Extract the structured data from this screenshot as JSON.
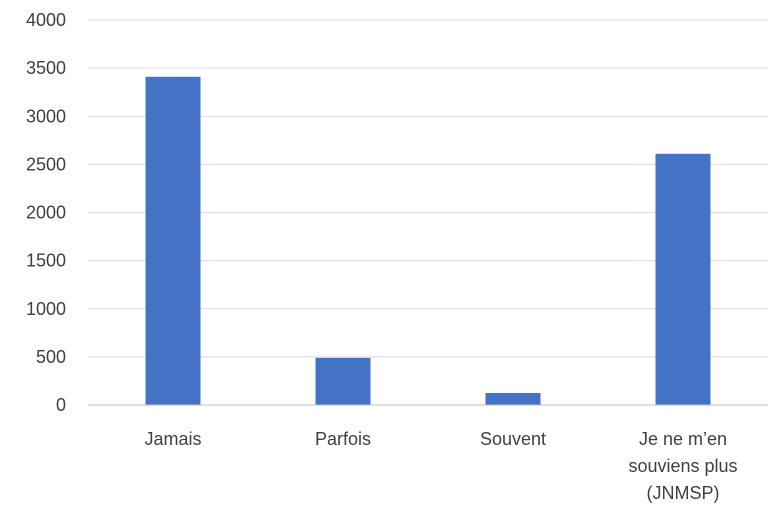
{
  "chart_data": {
    "type": "bar",
    "categories": [
      "Jamais",
      "Parfois",
      "Souvent",
      "Je ne m’en souviens plus (JNMSP)"
    ],
    "category_lines": [
      [
        "Jamais"
      ],
      [
        "Parfois"
      ],
      [
        "Souvent"
      ],
      [
        "Je ne m’en",
        "souviens plus",
        "(JNMSP)"
      ]
    ],
    "values": [
      3410,
      490,
      125,
      2610
    ],
    "ylim": [
      0,
      4000
    ],
    "yticks": [
      0,
      500,
      1000,
      1500,
      2000,
      2500,
      3000,
      3500,
      4000
    ],
    "grid": true,
    "legend": "none",
    "bar_color": "#4472C4",
    "title": "",
    "xlabel": "",
    "ylabel": ""
  }
}
